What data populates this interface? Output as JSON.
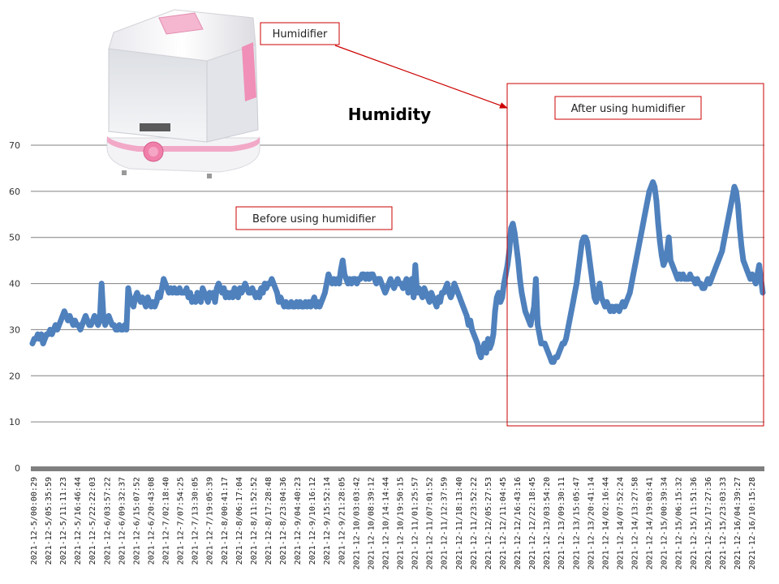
{
  "chart_data": {
    "type": "line",
    "title": "Humidity",
    "xlabel": "",
    "ylabel": "",
    "ylim": [
      0,
      70
    ],
    "yticks": [
      0,
      10,
      20,
      30,
      40,
      50,
      60,
      70
    ],
    "grid": true,
    "x_tick_labels": [
      "2021-12-5/00:00:29",
      "2021-12-5/05:35:59",
      "2021-12-5/11:11:23",
      "2021-12-5/16:46:44",
      "2021-12-5/22:22:03",
      "2021-12-6/03:57:22",
      "2021-12-6/09:32:37",
      "2021-12-6/15:07:52",
      "2021-12-6/20:43:08",
      "2021-12-7/02:18:40",
      "2021-12-7/07:54:25",
      "2021-12-7/13:30:05",
      "2021-12-7/19:05:39",
      "2021-12-8/00:41:17",
      "2021-12-8/06:17:04",
      "2021-12-8/11:52:52",
      "2021-12-8/17:28:48",
      "2021-12-8/23:04:36",
      "2021-12-9/04:40:23",
      "2021-12-9/10:16:12",
      "2021-12-9/15:52:14",
      "2021-12-9/21:28:05",
      "2021-12-10/03:03:42",
      "2021-12-10/08:39:12",
      "2021-12-10/14:14:44",
      "2021-12-10/19:50:15",
      "2021-12-11/01:25:57",
      "2021-12-11/07:01:52",
      "2021-12-11/12:37:59",
      "2021-12-11/18:13:40",
      "2021-12-11/23:52:22",
      "2021-12-12/05:27:53",
      "2021-12-12/11:04:45",
      "2021-12-12/16:43:16",
      "2021-12-12/22:18:45",
      "2021-12-13/03:54:20",
      "2021-12-13/09:30:11",
      "2021-12-13/15:05:47",
      "2021-12-13/20:41:14",
      "2021-12-14/02:16:44",
      "2021-12-14/07:52:24",
      "2021-12-14/13:27:58",
      "2021-12-14/19:03:41",
      "2021-12-15/00:39:34",
      "2021-12-15/06:15:32",
      "2021-12-15/11:51:36",
      "2021-12-15/17:27:36",
      "2021-12-15/23:03:33",
      "2021-12-16/04:39:27",
      "2021-12-16/10:15:28"
    ],
    "series": [
      {
        "values": [
          27,
          28,
          28,
          29,
          28,
          29,
          27,
          28,
          29,
          29,
          30,
          29,
          30,
          31,
          30,
          31,
          32,
          33,
          34,
          33,
          32,
          33,
          32,
          31,
          32,
          31,
          31,
          30,
          31,
          32,
          33,
          32,
          31,
          31,
          32,
          33,
          32,
          31,
          32,
          40,
          33,
          31,
          32,
          33,
          32,
          31,
          31,
          30,
          30,
          31,
          30,
          30,
          31,
          30,
          39,
          37,
          36,
          35,
          37,
          38,
          37,
          36,
          37,
          36,
          35,
          37,
          36,
          35,
          36,
          35,
          36,
          38,
          37,
          39,
          41,
          40,
          39,
          38,
          39,
          38,
          39,
          38,
          38,
          39,
          38,
          38,
          38,
          39,
          37,
          38,
          36,
          37,
          36,
          38,
          37,
          36,
          39,
          38,
          37,
          36,
          38,
          37,
          38,
          36,
          39,
          40,
          39,
          38,
          39,
          37,
          38,
          37,
          38,
          37,
          39,
          38,
          37,
          39,
          38,
          39,
          40,
          39,
          38,
          38,
          39,
          38,
          37,
          38,
          37,
          39,
          38,
          40,
          39,
          40,
          40,
          41,
          40,
          39,
          38,
          36,
          37,
          36,
          35,
          36,
          35,
          35,
          36,
          35,
          35,
          36,
          35,
          36,
          35,
          35,
          36,
          35,
          36,
          35,
          36,
          37,
          35,
          36,
          35,
          36,
          37,
          38,
          40,
          42,
          41,
          40,
          41,
          40,
          41,
          40,
          43,
          45,
          42,
          41,
          40,
          41,
          40,
          41,
          41,
          40,
          41,
          41,
          42,
          42,
          41,
          42,
          41,
          42,
          42,
          41,
          40,
          41,
          41,
          40,
          39,
          38,
          39,
          40,
          41,
          40,
          39,
          40,
          41,
          40,
          40,
          39,
          40,
          41,
          38,
          39,
          41,
          37,
          44,
          38,
          39,
          38,
          37,
          39,
          38,
          37,
          36,
          38,
          37,
          36,
          35,
          37,
          36,
          38,
          38,
          39,
          40,
          38,
          37,
          38,
          40,
          39,
          38,
          37,
          36,
          35,
          34,
          33,
          31,
          32,
          30,
          29,
          28,
          27,
          25,
          24,
          26,
          27,
          25,
          28,
          26,
          27,
          29,
          34,
          37,
          38,
          36,
          37,
          40,
          42,
          44,
          47,
          52,
          53,
          51,
          48,
          45,
          41,
          38,
          36,
          34,
          33,
          32,
          31,
          33,
          35,
          41,
          31,
          29,
          27,
          27,
          27,
          26,
          25,
          24,
          23,
          23,
          24,
          24,
          25,
          26,
          27,
          27,
          28,
          30,
          32,
          34,
          36,
          38,
          40,
          43,
          46,
          49,
          50,
          50,
          49,
          46,
          43,
          40,
          37,
          36,
          38,
          40,
          37,
          36,
          35,
          36,
          35,
          34,
          35,
          34,
          35,
          35,
          34,
          35,
          36,
          35,
          36,
          37,
          38,
          40,
          42,
          44,
          46,
          48,
          50,
          52,
          54,
          56,
          58,
          60,
          61,
          62,
          61,
          58,
          53,
          49,
          46,
          44,
          45,
          47,
          50,
          45,
          44,
          43,
          42,
          41,
          42,
          41,
          42,
          41,
          41,
          41,
          42,
          41,
          41,
          40,
          41,
          40,
          40,
          39,
          39,
          40,
          41,
          40,
          41,
          42,
          43,
          44,
          45,
          46,
          47,
          49,
          51,
          53,
          55,
          57,
          59,
          61,
          60,
          57,
          52,
          48,
          45,
          44,
          43,
          42,
          41,
          42,
          41,
          40,
          42,
          44,
          41,
          38
        ]
      }
    ],
    "annotations": {
      "device": "Humidifier",
      "before": "Before using humidifier",
      "after": "After using humidifier"
    },
    "colors": {
      "series": "#4f81bd",
      "annotation_box": "#cc0000",
      "grid": "#808080",
      "x_axis_bar": "#7f7f7f"
    },
    "picture": "humidifier-product-photo"
  }
}
